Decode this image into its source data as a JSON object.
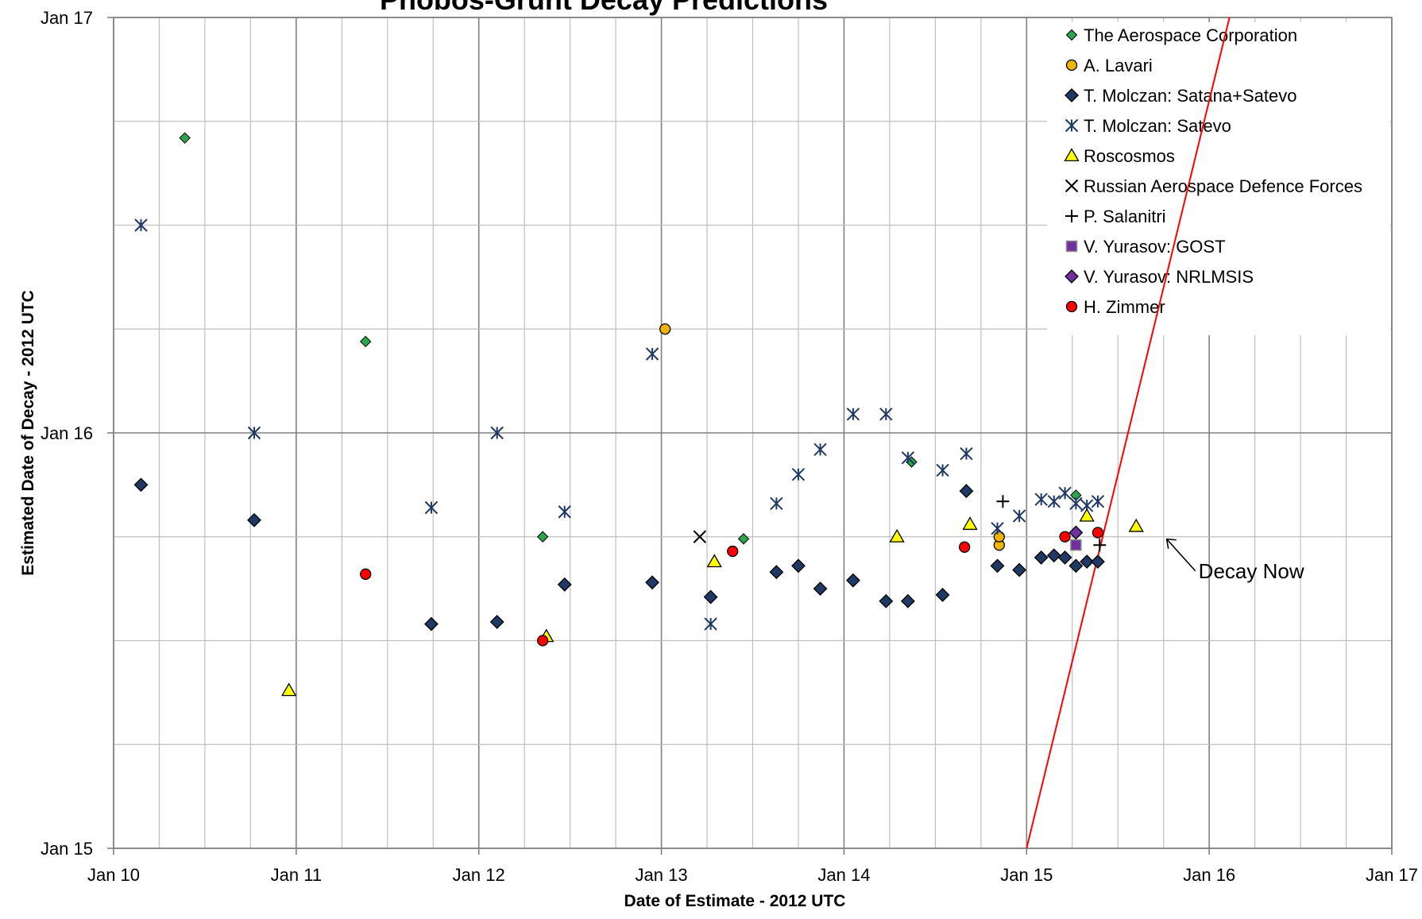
{
  "chart_data": {
    "type": "scatter",
    "title": "Phobos-Grunt Decay Predictions",
    "xlabel": "Date of Estimate - 2012 UTC",
    "ylabel": "Estimated Date of Decay -  2012 UTC",
    "xlim": [
      "2012-01-10",
      "2012-01-17"
    ],
    "ylim": [
      "2012-01-15",
      "2012-01-17"
    ],
    "x_ticks": [
      {
        "value": 10,
        "label": "Jan 10"
      },
      {
        "value": 11,
        "label": "Jan 11"
      },
      {
        "value": 12,
        "label": "Jan 12"
      },
      {
        "value": 13,
        "label": "Jan 13"
      },
      {
        "value": 14,
        "label": "Jan 14"
      },
      {
        "value": 15,
        "label": "Jan 15"
      },
      {
        "value": 16,
        "label": "Jan 16"
      },
      {
        "value": 17,
        "label": "Jan 17"
      }
    ],
    "y_ticks": [
      {
        "value": 15,
        "label": "Jan 15"
      },
      {
        "value": 16,
        "label": "Jan 16"
      },
      {
        "value": 17,
        "label": "Jan 17"
      }
    ],
    "grid": true,
    "legend_position": "top-right",
    "series": [
      {
        "name": "The Aerospace Corporation",
        "marker": "diamond-small",
        "color": "#2da44e",
        "points": [
          [
            10.39,
            16.71
          ],
          [
            11.38,
            16.22
          ],
          [
            12.35,
            15.75
          ],
          [
            13.45,
            15.745
          ],
          [
            14.37,
            15.93
          ],
          [
            15.27,
            15.85
          ]
        ]
      },
      {
        "name": "A. Lavari",
        "marker": "circle",
        "color": "#f0b400",
        "points": [
          [
            13.02,
            16.25
          ],
          [
            14.85,
            15.73
          ],
          [
            14.85,
            15.75
          ]
        ]
      },
      {
        "name": "T. Molczan: Satana+Satevo",
        "marker": "diamond",
        "color": "#1f3864",
        "points": [
          [
            10.15,
            15.875
          ],
          [
            10.77,
            15.79
          ],
          [
            11.74,
            15.54
          ],
          [
            12.1,
            15.545
          ],
          [
            12.47,
            15.635
          ],
          [
            12.95,
            15.64
          ],
          [
            13.27,
            15.605
          ],
          [
            13.63,
            15.665
          ],
          [
            13.75,
            15.68
          ],
          [
            13.87,
            15.625
          ],
          [
            14.05,
            15.645
          ],
          [
            14.23,
            15.595
          ],
          [
            14.35,
            15.595
          ],
          [
            14.54,
            15.61
          ],
          [
            14.67,
            15.86
          ],
          [
            14.84,
            15.68
          ],
          [
            14.96,
            15.67
          ],
          [
            15.08,
            15.7
          ],
          [
            15.15,
            15.705
          ],
          [
            15.21,
            15.7
          ],
          [
            15.27,
            15.68
          ],
          [
            15.33,
            15.69
          ],
          [
            15.39,
            15.69
          ]
        ]
      },
      {
        "name": "T. Molczan: Satevo",
        "marker": "star",
        "color": "#1f3864",
        "points": [
          [
            10.15,
            16.5
          ],
          [
            10.77,
            16.0
          ],
          [
            11.74,
            15.82
          ],
          [
            12.1,
            16.0
          ],
          [
            12.47,
            15.81
          ],
          [
            12.95,
            16.19
          ],
          [
            13.27,
            15.54
          ],
          [
            13.63,
            15.83
          ],
          [
            13.75,
            15.9
          ],
          [
            13.87,
            15.96
          ],
          [
            14.05,
            16.045
          ],
          [
            14.23,
            16.045
          ],
          [
            14.35,
            15.94
          ],
          [
            14.54,
            15.91
          ],
          [
            14.67,
            15.95
          ],
          [
            14.84,
            15.77
          ],
          [
            14.96,
            15.8
          ],
          [
            15.08,
            15.84
          ],
          [
            15.15,
            15.835
          ],
          [
            15.21,
            15.855
          ],
          [
            15.27,
            15.83
          ],
          [
            15.33,
            15.825
          ],
          [
            15.39,
            15.835
          ]
        ]
      },
      {
        "name": "Roscosmos",
        "marker": "triangle",
        "color": "#ffff00",
        "points": [
          [
            10.96,
            15.38
          ],
          [
            12.37,
            15.51
          ],
          [
            13.29,
            15.69
          ],
          [
            14.29,
            15.75
          ],
          [
            14.69,
            15.78
          ],
          [
            15.33,
            15.8
          ],
          [
            15.6,
            15.775
          ]
        ]
      },
      {
        "name": "Russian Aerospace Defence Forces",
        "marker": "x",
        "color": "#000000",
        "points": [
          [
            13.21,
            15.75
          ]
        ]
      },
      {
        "name": "P. Salanitri",
        "marker": "plus",
        "color": "#000000",
        "points": [
          [
            14.87,
            15.835
          ],
          [
            15.4,
            15.73
          ]
        ]
      },
      {
        "name": "V. Yurasov: GOST",
        "marker": "square",
        "color": "#7030a0",
        "points": [
          [
            15.27,
            15.73
          ]
        ]
      },
      {
        "name": "V. Yurasov: NRLMSIS",
        "marker": "diamond",
        "color": "#7030a0",
        "points": [
          [
            15.27,
            15.76
          ]
        ]
      },
      {
        "name": "H. Zimmer",
        "marker": "circle",
        "color": "#ff0000",
        "points": [
          [
            11.38,
            15.66
          ],
          [
            12.35,
            15.5
          ],
          [
            13.39,
            15.715
          ],
          [
            14.66,
            15.725
          ],
          [
            15.21,
            15.75
          ],
          [
            15.39,
            15.76
          ]
        ]
      }
    ],
    "reference_line": {
      "label": "",
      "color": "#ff0000",
      "points": [
        [
          15.0,
          15.0
        ],
        [
          16.25,
          17.25
        ]
      ]
    },
    "annotations": [
      {
        "text": "Decay Now",
        "x": 15.75,
        "y": 15.75
      }
    ]
  }
}
